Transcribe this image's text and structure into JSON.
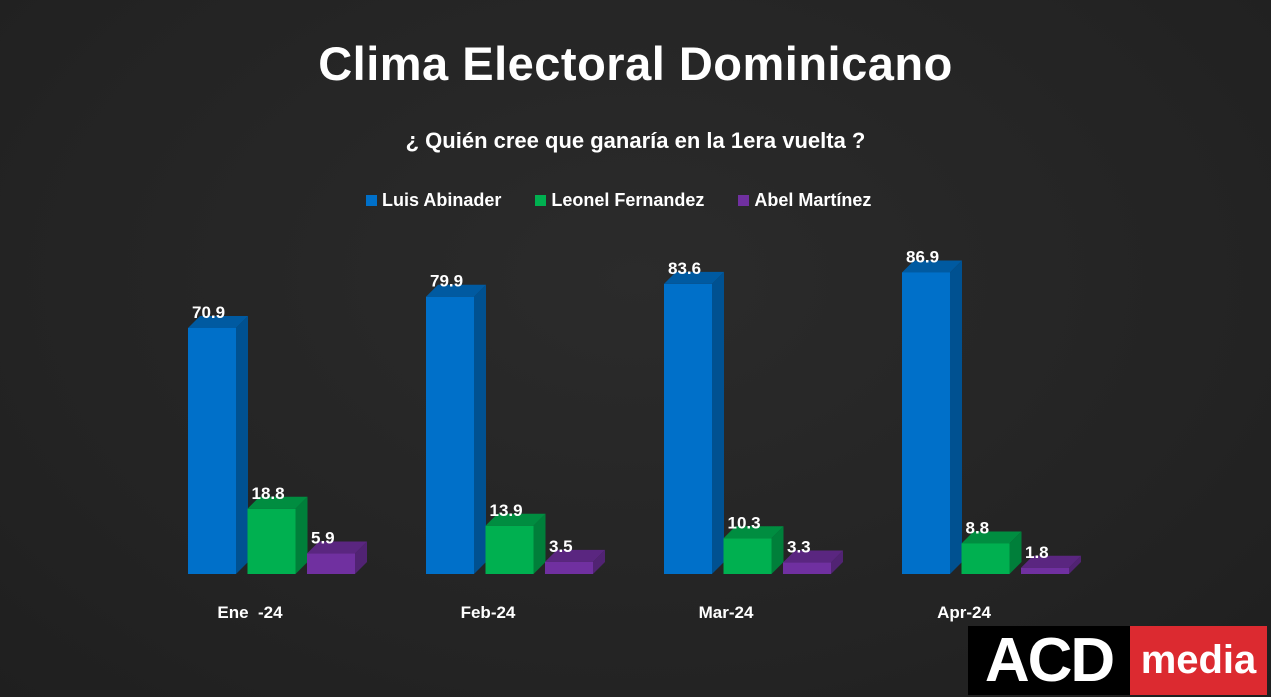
{
  "title": "Clima Electoral Dominicano",
  "subtitle": "¿ Quién cree que ganaría en la 1era vuelta ?",
  "legend": [
    {
      "label": "Luis Abinader",
      "color": "#0070c9"
    },
    {
      "label": "Leonel Fernandez",
      "color": "#00b050"
    },
    {
      "label": "Abel Martínez",
      "color": "#7030a0"
    }
  ],
  "logo": {
    "left": "ACD",
    "right": "media"
  },
  "chart_data": {
    "type": "bar",
    "title": "Clima Electoral Dominicano",
    "subtitle": "¿ Quién cree que ganaría en la 1era vuelta ?",
    "categories": [
      "Ene  -24",
      "Feb-24",
      "Mar-24",
      "Apr-24"
    ],
    "series": [
      {
        "name": "Luis Abinader",
        "color": "#0070c9",
        "values": [
          70.9,
          79.9,
          83.6,
          86.9
        ]
      },
      {
        "name": "Leonel Fernandez",
        "color": "#00b050",
        "values": [
          18.8,
          13.9,
          10.3,
          8.8
        ]
      },
      {
        "name": "Abel Martínez",
        "color": "#7030a0",
        "values": [
          5.9,
          3.5,
          3.3,
          1.8
        ]
      }
    ],
    "xlabel": "",
    "ylabel": "",
    "ylim": [
      0,
      100
    ],
    "grid": false,
    "legend_position": "top-center",
    "style": "3d-clustered-column"
  }
}
